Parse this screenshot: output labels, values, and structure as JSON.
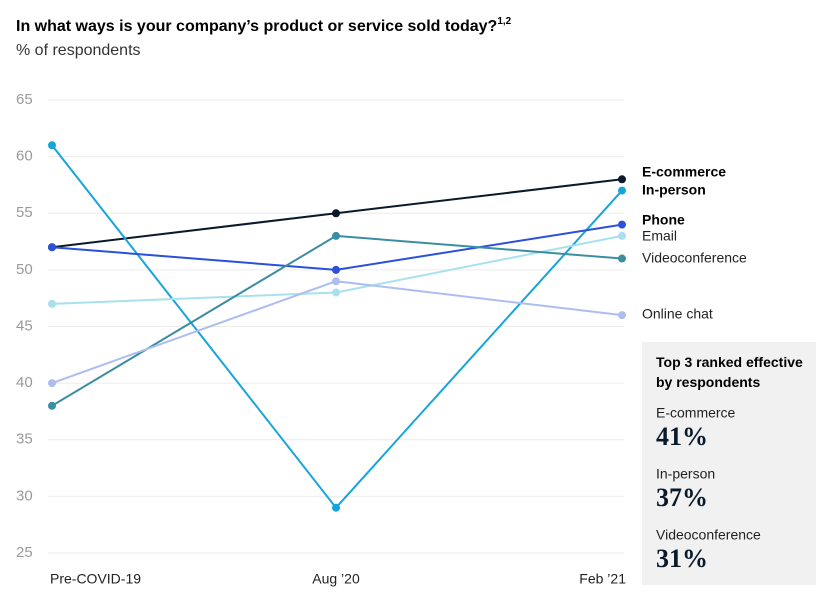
{
  "chart_data": {
    "type": "line",
    "title": "In what ways is your company’s product or service sold today?",
    "title_superscript": "1,2",
    "subtitle": "% of respondents",
    "categories": [
      "Pre-COVID-19",
      "Aug ’20",
      "Feb ’21"
    ],
    "ylim": [
      25,
      65
    ],
    "yticks": [
      25,
      30,
      35,
      40,
      45,
      50,
      55,
      60,
      65
    ],
    "grid": true,
    "series": [
      {
        "name": "E-commerce",
        "color": "#0b1a2b",
        "values": [
          52,
          55,
          58
        ]
      },
      {
        "name": "In-person",
        "color": "#17a4dc",
        "values": [
          61,
          29,
          57
        ]
      },
      {
        "name": "Phone",
        "color": "#2b50d9",
        "values": [
          52,
          50,
          54
        ]
      },
      {
        "name": "Email",
        "color": "#a7e1ee",
        "values": [
          47,
          48,
          53
        ]
      },
      {
        "name": "Videoconference",
        "color": "#3b8ea2",
        "values": [
          38,
          53,
          51
        ]
      },
      {
        "name": "Online chat",
        "color": "#aebdf0",
        "values": [
          40,
          49,
          46
        ]
      }
    ],
    "panel": {
      "title": "Top 3 ranked effective by respondents",
      "items": [
        "E-commerce",
        "In-person",
        "Videoconference"
      ],
      "values": [
        41,
        37,
        31
      ],
      "value_labels": [
        "41%",
        "37%",
        "31%"
      ]
    }
  }
}
